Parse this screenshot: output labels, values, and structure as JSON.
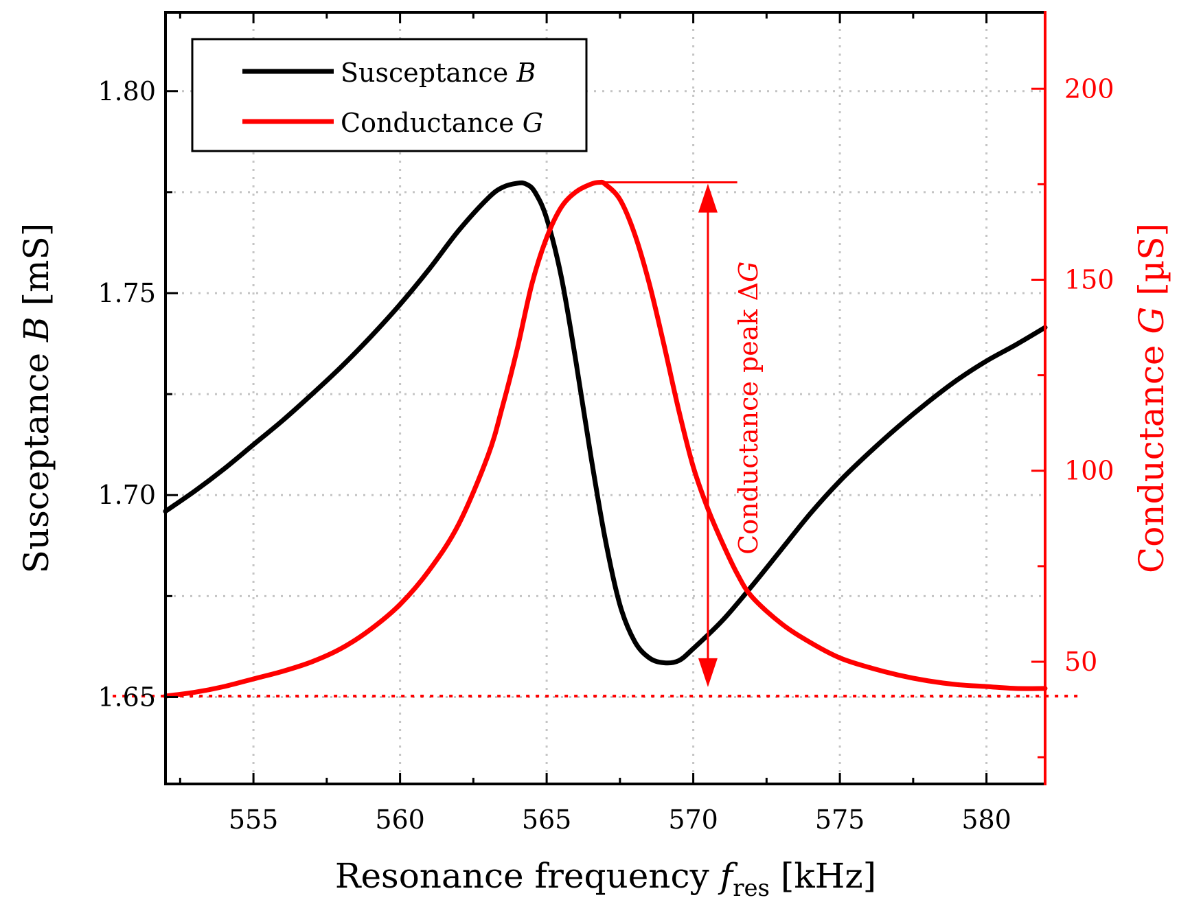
{
  "chart_data": {
    "type": "line",
    "title": "",
    "xlabel": "Resonance frequency",
    "xlabel_symbol": "f",
    "xlabel_subscript": "res",
    "xlabel_unit": "[kHz]",
    "ylabel_left": "Susceptance",
    "ylabel_left_symbol": "B",
    "ylabel_left_unit": "[mS]",
    "ylabel_right": "Conductance",
    "ylabel_right_symbol": "G",
    "ylabel_right_unit": "[µS]",
    "xlim": [
      552,
      582
    ],
    "ylim_left": [
      1.6285,
      1.8195
    ],
    "ylim_right": [
      18,
      220
    ],
    "x_ticks": [
      555,
      560,
      565,
      570,
      575,
      580
    ],
    "x_tick_labels": [
      "555",
      "560",
      "565",
      "570",
      "575",
      "580"
    ],
    "y_left_ticks": [
      1.65,
      1.7,
      1.75,
      1.8
    ],
    "y_left_tick_labels": [
      "1.65",
      "1.70",
      "1.75",
      "1.80"
    ],
    "y_left_minor_ticks": [
      1.675,
      1.725,
      1.775
    ],
    "y_right_ticks": [
      50,
      100,
      150,
      200
    ],
    "y_right_tick_labels": [
      "50",
      "100",
      "150",
      "200"
    ],
    "grid": true,
    "legend_position": "top-left",
    "series": [
      {
        "name": "Susceptance",
        "name_symbol": "B",
        "axis": "left",
        "color": "#000000",
        "x": [
          552,
          553,
          554,
          555,
          556,
          557,
          558,
          559,
          560,
          561,
          562,
          563,
          563.5,
          564,
          564.3,
          564.6,
          565,
          565.5,
          566,
          566.5,
          567,
          567.5,
          568,
          568.5,
          569,
          569.5,
          570,
          571,
          572,
          573,
          574,
          575,
          576,
          577,
          578,
          579,
          580,
          581,
          582
        ],
        "y": [
          1.696,
          1.701,
          1.7065,
          1.7125,
          1.7185,
          1.725,
          1.7318,
          1.7392,
          1.7472,
          1.756,
          1.7655,
          1.7735,
          1.7762,
          1.7772,
          1.777,
          1.775,
          1.7685,
          1.754,
          1.733,
          1.71,
          1.689,
          1.6728,
          1.6638,
          1.6597,
          1.6585,
          1.659,
          1.662,
          1.669,
          1.6775,
          1.6865,
          1.6955,
          1.7035,
          1.7105,
          1.717,
          1.723,
          1.7285,
          1.7332,
          1.7372,
          1.7415
        ]
      },
      {
        "name": "Conductance",
        "name_symbol": "G",
        "axis": "right",
        "color": "#ff0000",
        "x": [
          552,
          553,
          554,
          555,
          556,
          557,
          558,
          559,
          560,
          561,
          562,
          563,
          563.5,
          564,
          564.5,
          565,
          565.5,
          566,
          566.5,
          566.8,
          567,
          567.5,
          568,
          568.5,
          569,
          569.5,
          570,
          570.5,
          571,
          571.5,
          572,
          573,
          574,
          575,
          576,
          577,
          578,
          579,
          580,
          581,
          582
        ],
        "y": [
          41,
          42,
          43.5,
          45.5,
          47.5,
          50,
          53.5,
          58.5,
          65,
          74,
          86,
          104,
          117,
          132,
          149,
          161,
          169,
          173,
          175,
          175.5,
          175,
          171,
          162,
          149,
          133,
          116,
          101,
          90,
          81,
          73,
          67,
          60,
          55,
          51,
          48.5,
          46.5,
          45,
          44,
          43.5,
          43,
          43
        ]
      }
    ],
    "baseline": {
      "axis": "right",
      "value": 41,
      "color": "#ff0000",
      "style": "dotted",
      "x_range": [
        550.2,
        583.2
      ]
    },
    "annotation": {
      "label": "Conductance peak Δ",
      "label_symbol": "G",
      "color": "#ff0000",
      "x": 570.5,
      "from_value": 43,
      "to_value": 175.5,
      "peak_line_x_range": [
        566.8,
        571.5
      ]
    }
  }
}
